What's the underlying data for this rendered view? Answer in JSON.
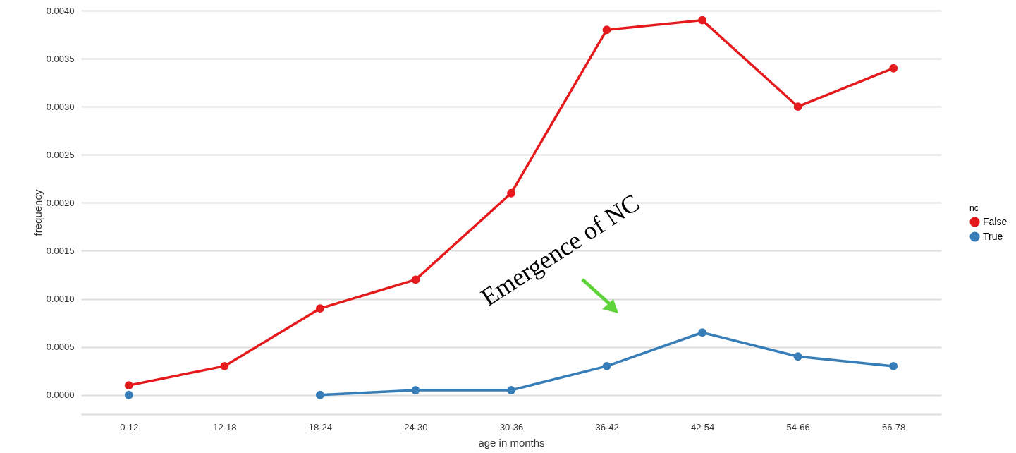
{
  "chart_data": {
    "type": "line",
    "xlabel": "age in months",
    "ylabel": "frequency",
    "legend_title": "nc",
    "categories": [
      "0-12",
      "12-18",
      "18-24",
      "24-30",
      "30-36",
      "36-42",
      "42-54",
      "54-66",
      "66-78"
    ],
    "series": [
      {
        "name": "False",
        "color": "#e41a1c",
        "values": [
          0.0001,
          0.0003,
          0.0009,
          0.0012,
          0.0021,
          0.0038,
          0.0039,
          0.003,
          0.0034
        ]
      },
      {
        "name": "True",
        "color": "#377eb8",
        "values": [
          0,
          null,
          0,
          5e-05,
          5e-05,
          0.0003,
          0.00065,
          0.0004,
          0.0003
        ]
      }
    ],
    "ylim": [
      -0.0002,
      0.004
    ],
    "yticks": [
      {
        "value": 0,
        "label": "0.0000"
      },
      {
        "value": 0.0005,
        "label": "0.0005"
      },
      {
        "value": 0.001,
        "label": "0.0010"
      },
      {
        "value": 0.0015,
        "label": "0.0015"
      },
      {
        "value": 0.002,
        "label": "0.0020"
      },
      {
        "value": 0.0025,
        "label": "0.0025"
      },
      {
        "value": 0.003,
        "label": "0.0030"
      },
      {
        "value": 0.0035,
        "label": "0.0035"
      },
      {
        "value": 0.004,
        "label": "0.0040"
      }
    ],
    "grid": "y",
    "legend": "right",
    "marker": "circle",
    "line_style": "solid",
    "annotations": [
      "Emergence of NC"
    ]
  }
}
